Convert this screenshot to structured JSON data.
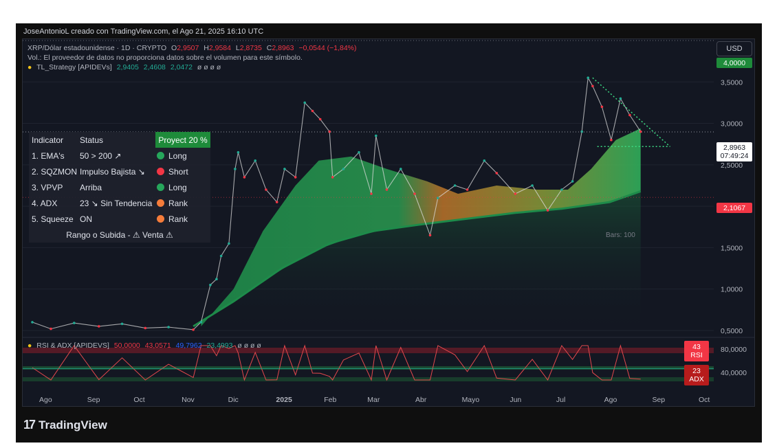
{
  "credit": "JoseAntonioL creado con TradingView.com, el Ago 21, 2025 16:10 UTC",
  "legend": {
    "symbol": "XRP/Dólar estadounidense · 1D · CRYPTO",
    "o_label": "O",
    "o": "2,9507",
    "h_label": "H",
    "h": "2,9584",
    "l_label": "L",
    "l": "2,8735",
    "c_label": "C",
    "c": "2,8963",
    "change": "−0,0544 (−1,84%)",
    "vol_note": "Vol.: El proveedor de datos no proporciona datos sobre el volumen para este símbolo.",
    "strategy_name": "TL_Strategy [APIDEVs]",
    "strategy_v1": "2,9405",
    "strategy_v2": "2,4608",
    "strategy_v3": "2,0472",
    "strategy_rest": "ø ø ø ø",
    "rsi_name": "RSI & ADX [APIDEVS]",
    "rsi_v1": "50,0000",
    "rsi_v2": "43,0571",
    "rsi_v3": "49,7962",
    "rsi_v4": "23,4993",
    "rsi_rest": "ø ø ø ø"
  },
  "currency_button": "USD",
  "table": {
    "header": [
      "Indicator",
      "Status",
      "Proyect 20 %"
    ],
    "rows": [
      {
        "name": "1. EMA's",
        "status": "50 > 200 ↗",
        "signal": "Long",
        "color": "#26a65b"
      },
      {
        "name": "2. SQZMON",
        "status": "Impulso Bajista ↘",
        "signal": "Short",
        "color": "#f23645"
      },
      {
        "name": "3. VPVP",
        "status": "Arriba",
        "signal": "Long",
        "color": "#26a65b"
      },
      {
        "name": "4. ADX",
        "status": "23 ↘ Sin Tendencia",
        "signal": "Rank",
        "color": "#f57c3a"
      },
      {
        "name": "5. Squeeze",
        "status": "ON",
        "signal": "Rank",
        "color": "#f57c3a"
      }
    ],
    "footer": "Rango o Subida - ⚠ Venta ⚠"
  },
  "bars_label": "Bars: 100",
  "price_tags": {
    "top": "4,0000",
    "current": "2,8963",
    "countdown": "07:49:24",
    "level": "2,1067",
    "rsi": "43",
    "rsi_label": "RSI",
    "adx": "23",
    "adx_label": "ADX"
  },
  "brand": "TradingView",
  "colors": {
    "up": "#22ab94",
    "down": "#f23645",
    "band_green": "#1e8b4a",
    "band_orange": "#d9822b"
  },
  "chart_data": {
    "type": "line",
    "title": "XRP/Dólar estadounidense · 1D · CRYPTO",
    "x_ticks": [
      "Ago",
      "Sep",
      "Oct",
      "Nov",
      "Dic",
      "2025",
      "Feb",
      "Mar",
      "Abr",
      "Mayo",
      "Jun",
      "Jul",
      "Ago",
      "Sep",
      "Oct"
    ],
    "y_ticks": [
      "0,5000",
      "1,0000",
      "1,5000",
      "2,0000",
      "2,5000",
      "3,0000",
      "3,5000"
    ],
    "ylim": [
      0.45,
      3.95
    ],
    "series": [
      {
        "name": "XRP/Dólar estadounidense",
        "points": [
          [
            "2024-07-24",
            0.6
          ],
          [
            "2024-08-05",
            0.52
          ],
          [
            "2024-08-20",
            0.59
          ],
          [
            "2024-09-05",
            0.55
          ],
          [
            "2024-09-20",
            0.58
          ],
          [
            "2024-10-05",
            0.53
          ],
          [
            "2024-10-20",
            0.54
          ],
          [
            "2024-11-05",
            0.51
          ],
          [
            "2024-11-10",
            0.6
          ],
          [
            "2024-11-16",
            1.05
          ],
          [
            "2024-11-20",
            1.12
          ],
          [
            "2024-11-23",
            1.4
          ],
          [
            "2024-11-28",
            1.55
          ],
          [
            "2024-12-02",
            2.45
          ],
          [
            "2024-12-04",
            2.65
          ],
          [
            "2024-12-08",
            2.35
          ],
          [
            "2024-12-15",
            2.55
          ],
          [
            "2024-12-22",
            2.2
          ],
          [
            "2024-12-29",
            2.05
          ],
          [
            "2025-01-03",
            2.45
          ],
          [
            "2025-01-10",
            2.35
          ],
          [
            "2025-01-16",
            3.25
          ],
          [
            "2025-01-21",
            3.15
          ],
          [
            "2025-01-26",
            3.05
          ],
          [
            "2025-02-01",
            2.9
          ],
          [
            "2025-02-03",
            2.35
          ],
          [
            "2025-02-10",
            2.45
          ],
          [
            "2025-02-20",
            2.65
          ],
          [
            "2025-02-28",
            2.15
          ],
          [
            "2025-03-03",
            2.85
          ],
          [
            "2025-03-10",
            2.2
          ],
          [
            "2025-03-19",
            2.45
          ],
          [
            "2025-03-28",
            2.15
          ],
          [
            "2025-04-07",
            1.65
          ],
          [
            "2025-04-12",
            2.1
          ],
          [
            "2025-04-23",
            2.25
          ],
          [
            "2025-05-01",
            2.2
          ],
          [
            "2025-05-12",
            2.55
          ],
          [
            "2025-05-20",
            2.4
          ],
          [
            "2025-06-01",
            2.15
          ],
          [
            "2025-06-12",
            2.25
          ],
          [
            "2025-06-22",
            1.95
          ],
          [
            "2025-07-01",
            2.2
          ],
          [
            "2025-07-08",
            2.3
          ],
          [
            "2025-07-14",
            2.9
          ],
          [
            "2025-07-18",
            3.55
          ],
          [
            "2025-07-21",
            3.45
          ],
          [
            "2025-07-27",
            3.2
          ],
          [
            "2025-08-02",
            2.8
          ],
          [
            "2025-08-08",
            3.3
          ],
          [
            "2025-08-14",
            3.1
          ],
          [
            "2025-08-21",
            2.9
          ]
        ]
      },
      {
        "name": "EMA 50",
        "points": [
          [
            "2024-11-10",
            0.55
          ],
          [
            "2024-12-01",
            1.0
          ],
          [
            "2024-12-20",
            1.7
          ],
          [
            "2025-01-10",
            2.25
          ],
          [
            "2025-01-25",
            2.55
          ],
          [
            "2025-02-15",
            2.6
          ],
          [
            "2025-03-10",
            2.45
          ],
          [
            "2025-04-05",
            2.3
          ],
          [
            "2025-04-25",
            2.15
          ],
          [
            "2025-05-20",
            2.25
          ],
          [
            "2025-06-15",
            2.2
          ],
          [
            "2025-07-05",
            2.2
          ],
          [
            "2025-07-20",
            2.45
          ],
          [
            "2025-08-05",
            2.8
          ],
          [
            "2025-08-21",
            2.94
          ]
        ]
      },
      {
        "name": "EMA 200",
        "points": [
          [
            "2024-11-05",
            0.55
          ],
          [
            "2024-12-01",
            0.85
          ],
          [
            "2025-01-01",
            1.25
          ],
          [
            "2025-02-01",
            1.55
          ],
          [
            "2025-03-01",
            1.7
          ],
          [
            "2025-04-01",
            1.78
          ],
          [
            "2025-05-01",
            1.85
          ],
          [
            "2025-06-01",
            1.92
          ],
          [
            "2025-07-01",
            1.97
          ],
          [
            "2025-08-01",
            2.05
          ],
          [
            "2025-08-21",
            2.18
          ]
        ]
      }
    ],
    "rsi_panel": {
      "y_ticks": [
        "80,0000",
        "40,0000"
      ],
      "rsi_last": 43.0571,
      "adx_last": 23.4993
    }
  }
}
